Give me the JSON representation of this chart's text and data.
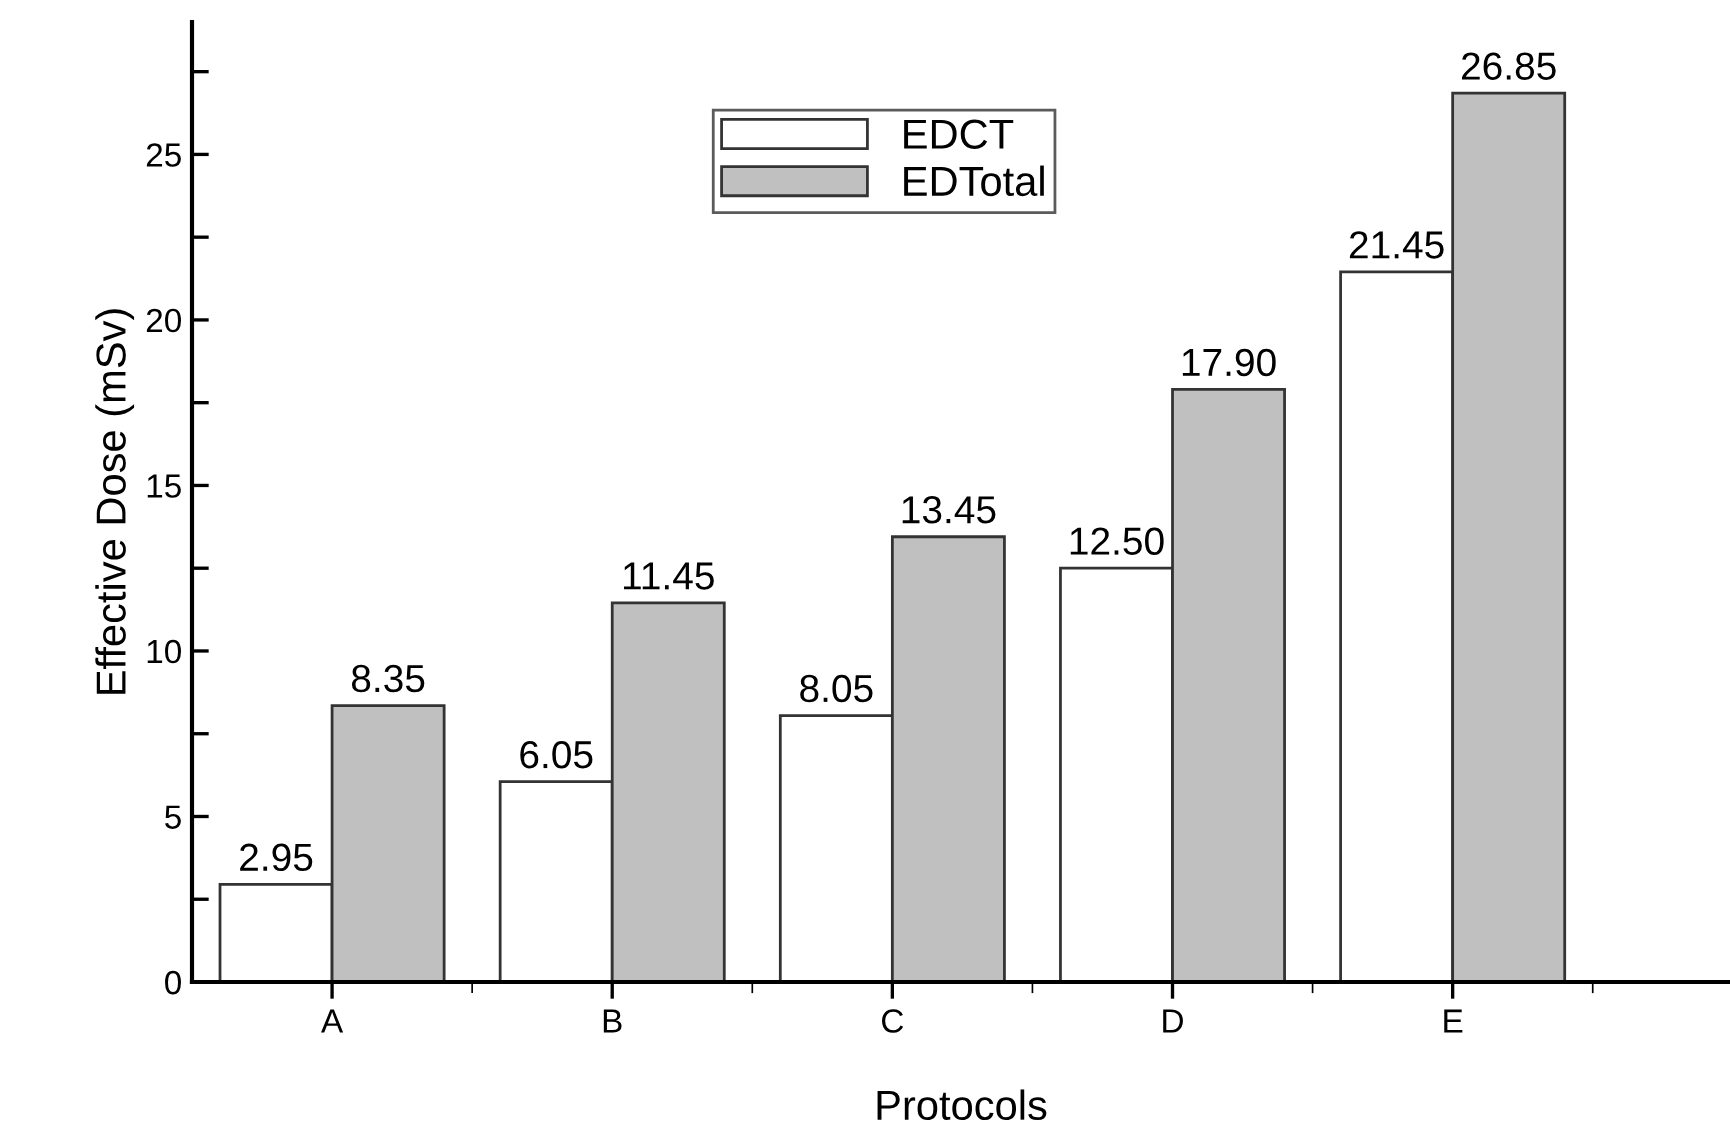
{
  "chart_data": {
    "type": "bar",
    "xlabel": "Protocols",
    "ylabel": "Effective Dose (mSv)",
    "categories": [
      "A",
      "B",
      "C",
      "D",
      "E"
    ],
    "series": [
      {
        "name": "EDCT",
        "color": "#ffffff",
        "values": [
          2.95,
          6.05,
          8.05,
          12.5,
          21.45
        ],
        "value_labels": [
          "2.95",
          "6.05",
          "8.05",
          "12.50",
          "21.45"
        ]
      },
      {
        "name": "EDTotal",
        "color": "#c0c0c0",
        "values": [
          8.35,
          11.45,
          13.45,
          17.9,
          26.85
        ],
        "value_labels": [
          "8.35",
          "11.45",
          "13.45",
          "17.90",
          "26.85"
        ]
      }
    ],
    "ylim": [
      0,
      29
    ],
    "yticks": [
      0,
      {
        "value": 2.5,
        "label": null
      },
      5,
      {
        "value": 7.5,
        "label": null
      },
      10,
      {
        "value": 12.5,
        "label": null
      },
      15,
      {
        "value": 17.5,
        "label": null
      },
      20,
      {
        "value": 22.5,
        "label": null
      },
      25,
      {
        "value": 27.5,
        "label": null
      }
    ],
    "grid": false,
    "legend": "top center"
  }
}
